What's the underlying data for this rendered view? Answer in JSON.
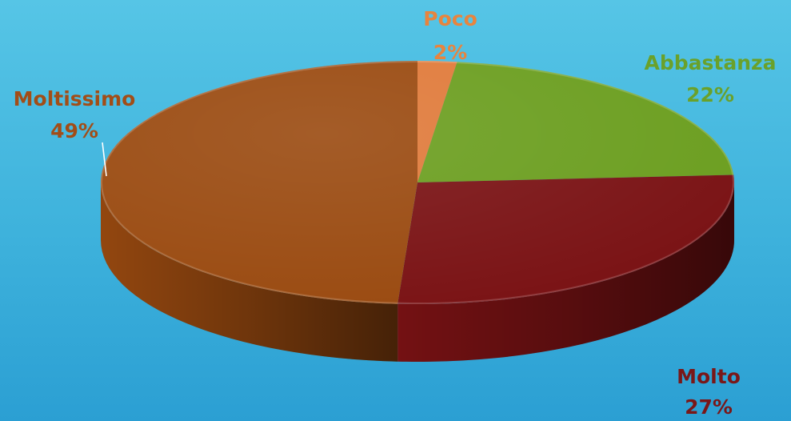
{
  "chart_data": {
    "type": "pie",
    "style": "3d",
    "slices": [
      {
        "label": "Poco",
        "value": 2,
        "value_label": "2%",
        "color": "#e07a3a",
        "label_color": "#e8843e"
      },
      {
        "label": "Abbastanza",
        "value": 22,
        "value_label": "22%",
        "color": "#6b9e1f",
        "label_color": "#6aa12a"
      },
      {
        "label": "Molto",
        "value": 27,
        "value_label": "27%",
        "color": "#7a1214",
        "label_color": "#7a1718"
      },
      {
        "label": "Moltissimo",
        "value": 49,
        "value_label": "49%",
        "color": "#9a4a10",
        "label_color": "#a24d17"
      }
    ]
  }
}
